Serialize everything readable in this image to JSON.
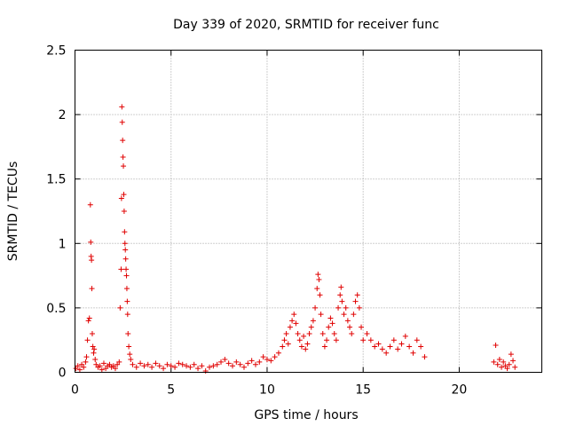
{
  "chart_data": {
    "type": "scatter",
    "title": "Day 339 of 2020, SRMTID for receiver func",
    "xlabel": "GPS time / hours",
    "ylabel": "SRMTID / TECUs",
    "xlim": [
      0,
      24.3
    ],
    "ylim": [
      0,
      2.5
    ],
    "xticks": [
      0,
      5,
      10,
      15,
      20
    ],
    "xtick_labels": [
      "0",
      "5",
      "10",
      "15",
      "20"
    ],
    "yticks": [
      0,
      0.5,
      1,
      1.5,
      2,
      2.5
    ],
    "ytick_labels": [
      "0",
      "0.5",
      "1",
      "1.5",
      "2",
      "2.5"
    ],
    "grid": true,
    "marker": "+",
    "color": "#e00000",
    "series": [
      {
        "name": "SRMTID",
        "points": [
          [
            0.05,
            0.03
          ],
          [
            0.15,
            0.05
          ],
          [
            0.25,
            0.02
          ],
          [
            0.35,
            0.06
          ],
          [
            0.45,
            0.04
          ],
          [
            0.55,
            0.08
          ],
          [
            0.6,
            0.12
          ],
          [
            0.65,
            0.25
          ],
          [
            0.7,
            0.4
          ],
          [
            0.75,
            0.42
          ],
          [
            0.8,
            1.3
          ],
          [
            0.82,
            1.01
          ],
          [
            0.84,
            0.9
          ],
          [
            0.86,
            0.87
          ],
          [
            0.88,
            0.65
          ],
          [
            0.9,
            0.3
          ],
          [
            0.93,
            0.2
          ],
          [
            0.97,
            0.15
          ],
          [
            1.0,
            0.18
          ],
          [
            1.05,
            0.1
          ],
          [
            1.1,
            0.06
          ],
          [
            1.2,
            0.04
          ],
          [
            1.3,
            0.05
          ],
          [
            1.4,
            0.02
          ],
          [
            1.5,
            0.07
          ],
          [
            1.6,
            0.03
          ],
          [
            1.7,
            0.05
          ],
          [
            1.8,
            0.06
          ],
          [
            1.9,
            0.04
          ],
          [
            2.0,
            0.05
          ],
          [
            2.1,
            0.03
          ],
          [
            2.2,
            0.06
          ],
          [
            2.3,
            0.08
          ],
          [
            2.35,
            0.5
          ],
          [
            2.4,
            0.8
          ],
          [
            2.42,
            1.35
          ],
          [
            2.44,
            2.06
          ],
          [
            2.46,
            1.94
          ],
          [
            2.48,
            1.8
          ],
          [
            2.5,
            1.67
          ],
          [
            2.52,
            1.6
          ],
          [
            2.54,
            1.38
          ],
          [
            2.56,
            1.25
          ],
          [
            2.58,
            1.09
          ],
          [
            2.6,
            1.0
          ],
          [
            2.62,
            0.95
          ],
          [
            2.64,
            0.88
          ],
          [
            2.66,
            0.8
          ],
          [
            2.68,
            0.75
          ],
          [
            2.7,
            0.65
          ],
          [
            2.72,
            0.55
          ],
          [
            2.74,
            0.45
          ],
          [
            2.76,
            0.3
          ],
          [
            2.8,
            0.2
          ],
          [
            2.85,
            0.14
          ],
          [
            2.9,
            0.1
          ],
          [
            3.0,
            0.06
          ],
          [
            3.2,
            0.04
          ],
          [
            3.4,
            0.07
          ],
          [
            3.6,
            0.05
          ],
          [
            3.8,
            0.06
          ],
          [
            4.0,
            0.04
          ],
          [
            4.2,
            0.07
          ],
          [
            4.4,
            0.05
          ],
          [
            4.6,
            0.03
          ],
          [
            4.8,
            0.06
          ],
          [
            5.0,
            0.05
          ],
          [
            5.2,
            0.04
          ],
          [
            5.4,
            0.07
          ],
          [
            5.6,
            0.06
          ],
          [
            5.8,
            0.05
          ],
          [
            6.0,
            0.04
          ],
          [
            6.2,
            0.06
          ],
          [
            6.4,
            0.03
          ],
          [
            6.6,
            0.05
          ],
          [
            6.8,
            0.01
          ],
          [
            7.0,
            0.04
          ],
          [
            7.2,
            0.05
          ],
          [
            7.4,
            0.06
          ],
          [
            7.6,
            0.08
          ],
          [
            7.8,
            0.1
          ],
          [
            8.0,
            0.07
          ],
          [
            8.2,
            0.05
          ],
          [
            8.4,
            0.08
          ],
          [
            8.6,
            0.06
          ],
          [
            8.8,
            0.04
          ],
          [
            9.0,
            0.07
          ],
          [
            9.2,
            0.09
          ],
          [
            9.4,
            0.06
          ],
          [
            9.6,
            0.08
          ],
          [
            9.8,
            0.12
          ],
          [
            10.0,
            0.1
          ],
          [
            10.2,
            0.09
          ],
          [
            10.4,
            0.12
          ],
          [
            10.6,
            0.15
          ],
          [
            10.8,
            0.2
          ],
          [
            10.9,
            0.25
          ],
          [
            11.0,
            0.3
          ],
          [
            11.1,
            0.22
          ],
          [
            11.2,
            0.35
          ],
          [
            11.3,
            0.4
          ],
          [
            11.4,
            0.45
          ],
          [
            11.5,
            0.38
          ],
          [
            11.6,
            0.3
          ],
          [
            11.7,
            0.25
          ],
          [
            11.8,
            0.2
          ],
          [
            11.9,
            0.28
          ],
          [
            12.0,
            0.18
          ],
          [
            12.1,
            0.22
          ],
          [
            12.2,
            0.3
          ],
          [
            12.3,
            0.35
          ],
          [
            12.4,
            0.4
          ],
          [
            12.5,
            0.5
          ],
          [
            12.6,
            0.65
          ],
          [
            12.65,
            0.76
          ],
          [
            12.7,
            0.72
          ],
          [
            12.75,
            0.6
          ],
          [
            12.8,
            0.45
          ],
          [
            12.9,
            0.3
          ],
          [
            13.0,
            0.2
          ],
          [
            13.1,
            0.25
          ],
          [
            13.2,
            0.35
          ],
          [
            13.3,
            0.42
          ],
          [
            13.4,
            0.38
          ],
          [
            13.5,
            0.3
          ],
          [
            13.6,
            0.25
          ],
          [
            13.7,
            0.5
          ],
          [
            13.8,
            0.6
          ],
          [
            13.85,
            0.66
          ],
          [
            13.9,
            0.55
          ],
          [
            14.0,
            0.45
          ],
          [
            14.1,
            0.5
          ],
          [
            14.2,
            0.4
          ],
          [
            14.3,
            0.35
          ],
          [
            14.4,
            0.3
          ],
          [
            14.5,
            0.45
          ],
          [
            14.6,
            0.55
          ],
          [
            14.7,
            0.6
          ],
          [
            14.8,
            0.5
          ],
          [
            14.9,
            0.35
          ],
          [
            15.0,
            0.25
          ],
          [
            15.2,
            0.3
          ],
          [
            15.4,
            0.25
          ],
          [
            15.6,
            0.2
          ],
          [
            15.8,
            0.22
          ],
          [
            16.0,
            0.18
          ],
          [
            16.2,
            0.15
          ],
          [
            16.4,
            0.2
          ],
          [
            16.6,
            0.25
          ],
          [
            16.8,
            0.18
          ],
          [
            17.0,
            0.22
          ],
          [
            17.2,
            0.28
          ],
          [
            17.4,
            0.2
          ],
          [
            17.6,
            0.15
          ],
          [
            17.8,
            0.25
          ],
          [
            18.0,
            0.2
          ],
          [
            18.2,
            0.12
          ],
          [
            21.8,
            0.08
          ],
          [
            21.9,
            0.21
          ],
          [
            22.0,
            0.06
          ],
          [
            22.1,
            0.1
          ],
          [
            22.2,
            0.04
          ],
          [
            22.3,
            0.08
          ],
          [
            22.4,
            0.05
          ],
          [
            22.5,
            0.03
          ],
          [
            22.6,
            0.06
          ],
          [
            22.7,
            0.14
          ],
          [
            22.8,
            0.09
          ],
          [
            22.9,
            0.04
          ]
        ]
      }
    ]
  }
}
